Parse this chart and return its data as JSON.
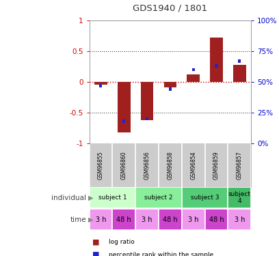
{
  "title": "GDS1940 / 1801",
  "samples": [
    "GSM96855",
    "GSM96860",
    "GSM96856",
    "GSM96858",
    "GSM96854",
    "GSM96859",
    "GSM96857"
  ],
  "log_ratio": [
    -0.04,
    -0.82,
    -0.62,
    -0.09,
    0.12,
    0.72,
    0.28
  ],
  "percentile_rank": [
    47,
    18,
    20,
    44,
    60,
    63,
    67
  ],
  "bar_color": "#a02020",
  "dot_color": "#2222cc",
  "ylim_left": [
    -1,
    1
  ],
  "yticks_left": [
    -1,
    -0.5,
    0,
    0.5,
    1
  ],
  "ytick_labels_left": [
    "-1",
    "-0.5",
    "0",
    "0.5",
    "1"
  ],
  "ylim_right": [
    0,
    100
  ],
  "yticks_right": [
    0,
    25,
    50,
    75,
    100
  ],
  "ytick_labels_right": [
    "0%",
    "25%",
    "50%",
    "75%",
    "100%"
  ],
  "hline_color": "#cc0000",
  "dotted_color": "#444444",
  "subject_data": [
    {
      "label": "subject 1",
      "cols": [
        0,
        1
      ],
      "color": "#ccffcc"
    },
    {
      "label": "subject 2",
      "cols": [
        2,
        3
      ],
      "color": "#88ee99"
    },
    {
      "label": "subject 3",
      "cols": [
        4,
        5
      ],
      "color": "#55cc77"
    },
    {
      "label": "subject\n4",
      "cols": [
        6
      ],
      "color": "#44bb66"
    }
  ],
  "time_labels": [
    "3 h",
    "48 h",
    "3 h",
    "48 h",
    "3 h",
    "48 h",
    "3 h"
  ],
  "time_color_light": "#ee99ee",
  "time_color_dark": "#cc44cc",
  "bar_color_leg": "#a02020",
  "dot_color_leg": "#2222cc",
  "gsm_bg": "#cccccc",
  "gsm_divider": "#ffffff",
  "left_label_color": "#444444",
  "background_color": "#ffffff",
  "bar_width": 0.55,
  "xlabel_color": "#cc0000",
  "ylabel_right_color": "#0000cc"
}
